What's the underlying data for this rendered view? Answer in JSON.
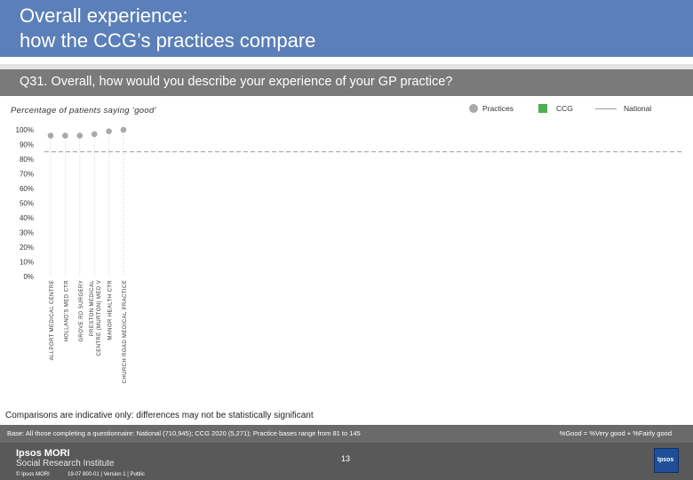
{
  "header": {
    "title_line1": "Overall experience:",
    "title_line2": "how the CCG’s practices compare"
  },
  "question": "Q31. Overall, how would you describe your experience of your GP practice?",
  "subtitle": "Percentage of patients saying ‘good’",
  "legend": {
    "practices": "Practices",
    "ccg": "CCG",
    "national": "National"
  },
  "colors": {
    "header_bg": "#5b7fb8",
    "question_bg": "#7a7a7a",
    "practice_dot": "#a9a9a9",
    "ccg": "#4caf50",
    "national_line": "#999999"
  },
  "chart_data": {
    "type": "scatter",
    "categories": [
      [
        "ALLPORT MEDICAL CENTRE"
      ],
      [
        "HOLLAND'S MED CTR"
      ],
      [
        "GROVE RD SURGERY"
      ],
      [
        "PRESTON MEDICAL",
        "CENTRE (MURTON) MED V"
      ],
      [
        "MANOR HEALTH CTR"
      ],
      [
        "CHURCH ROAD MEDICAL PRACTICE"
      ]
    ],
    "values": [
      96,
      96,
      96,
      97,
      99,
      100
    ],
    "national": 85,
    "ylim": [
      0,
      100
    ],
    "yticks": [
      "0%",
      "10%",
      "20%",
      "30%",
      "40%",
      "50%",
      "60%",
      "70%",
      "80%",
      "90%",
      "100%"
    ],
    "grid": false
  },
  "comparisons_note": "Comparisons are indicative only: differences may not be statistically significant",
  "footer": {
    "base": "Base: All those completing a questionnaire: National (710,945); CCG 2020 (5,271); Practice bases range from 81 to 145",
    "good_definition": "%Good = %Very good + %Fairly good",
    "logo_line1": "Ipsos MORI",
    "logo_line2": "Social Research Institute",
    "copyright": "© Ipsos MORI",
    "job_ref": "19-07 800-01 | Version 1 | Public",
    "page_number": "13",
    "brand": "Ipsos"
  }
}
